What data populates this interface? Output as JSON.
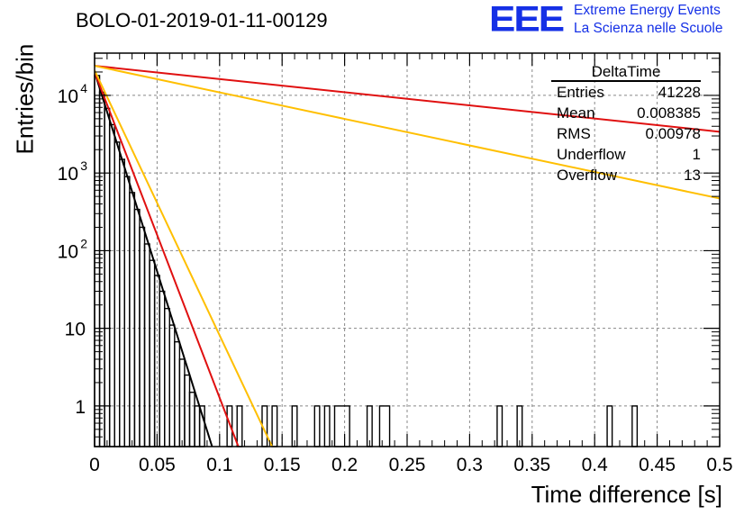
{
  "title": "BOLO-01-2019-01-11-00129",
  "logo": {
    "text": "EEE",
    "line1": "Extreme Energy Events",
    "line2": "La Scienza nelle Scuole",
    "color": "#1530e6"
  },
  "stats": {
    "name": "DeltaTime",
    "rows": [
      {
        "label": "Entries",
        "value": "41228"
      },
      {
        "label": "Mean",
        "value": "0.008385"
      },
      {
        "label": "RMS",
        "value": "0.00978"
      },
      {
        "label": "Underflow",
        "value": "1"
      },
      {
        "label": "Overflow",
        "value": "13"
      }
    ]
  },
  "chart_data": {
    "type": "line",
    "xlabel": "Time difference [s]",
    "ylabel": "Entries/bin",
    "xlim": [
      0,
      0.5
    ],
    "ylim": [
      0.3,
      35000
    ],
    "yscale": "log",
    "grid": true,
    "x_ticks": [
      "0",
      "0.05",
      "0.1",
      "0.15",
      "0.2",
      "0.25",
      "0.3",
      "0.35",
      "0.4",
      "0.45",
      "0.5"
    ],
    "y_ticks": [
      {
        "value": 1,
        "label": "1"
      },
      {
        "value": 10,
        "label": "10"
      },
      {
        "value": 100,
        "label": "10",
        "sup": "2"
      },
      {
        "value": 1000,
        "label": "10",
        "sup": "3"
      },
      {
        "value": 10000,
        "label": "10",
        "sup": "4"
      }
    ],
    "histogram": {
      "color": "#000000",
      "bins": [
        [
          0.0,
          0.004,
          18000
        ],
        [
          0.004,
          0.008,
          11000
        ],
        [
          0.008,
          0.012,
          6800
        ],
        [
          0.012,
          0.016,
          4200
        ],
        [
          0.016,
          0.02,
          2500
        ],
        [
          0.02,
          0.024,
          1500
        ],
        [
          0.024,
          0.028,
          900
        ],
        [
          0.028,
          0.032,
          560
        ],
        [
          0.032,
          0.036,
          340
        ],
        [
          0.036,
          0.04,
          200
        ],
        [
          0.04,
          0.044,
          122
        ],
        [
          0.044,
          0.048,
          75
        ],
        [
          0.048,
          0.052,
          48
        ],
        [
          0.052,
          0.056,
          30
        ],
        [
          0.056,
          0.06,
          18
        ],
        [
          0.06,
          0.064,
          11
        ],
        [
          0.064,
          0.068,
          6.7
        ],
        [
          0.068,
          0.072,
          4
        ],
        [
          0.072,
          0.076,
          2.5
        ],
        [
          0.076,
          0.08,
          1.5
        ],
        [
          0.08,
          0.084,
          1
        ],
        [
          0.084,
          0.088,
          1
        ],
        [
          0.088,
          0.096,
          0.3
        ],
        [
          0.106,
          0.11,
          1
        ],
        [
          0.11,
          0.114,
          0.3
        ],
        [
          0.114,
          0.118,
          1
        ],
        [
          0.118,
          0.122,
          0.3
        ],
        [
          0.134,
          0.138,
          1
        ],
        [
          0.138,
          0.142,
          0.3
        ],
        [
          0.142,
          0.146,
          1
        ],
        [
          0.158,
          0.162,
          1
        ],
        [
          0.176,
          0.18,
          1
        ],
        [
          0.184,
          0.188,
          1
        ],
        [
          0.192,
          0.204,
          1
        ],
        [
          0.218,
          0.222,
          1
        ],
        [
          0.228,
          0.236,
          1
        ],
        [
          0.322,
          0.326,
          1
        ],
        [
          0.338,
          0.342,
          1
        ],
        [
          0.41,
          0.414,
          1
        ],
        [
          0.43,
          0.434,
          1
        ]
      ]
    },
    "series": [
      {
        "color": "#000000",
        "x": [
          0,
          0.094
        ],
        "y": [
          20000,
          0.3
        ]
      },
      {
        "color": "#e01010",
        "x": [
          0,
          0.115
        ],
        "y": [
          20000,
          0.3
        ]
      },
      {
        "color": "#ffbf00",
        "x": [
          0,
          0.142
        ],
        "y": [
          21000,
          0.3
        ]
      },
      {
        "color": "#e01010",
        "x": [
          0,
          0.5
        ],
        "y": [
          24000,
          3400
        ]
      },
      {
        "color": "#ffbf00",
        "x": [
          0,
          0.5
        ],
        "y": [
          24000,
          470
        ]
      }
    ]
  }
}
